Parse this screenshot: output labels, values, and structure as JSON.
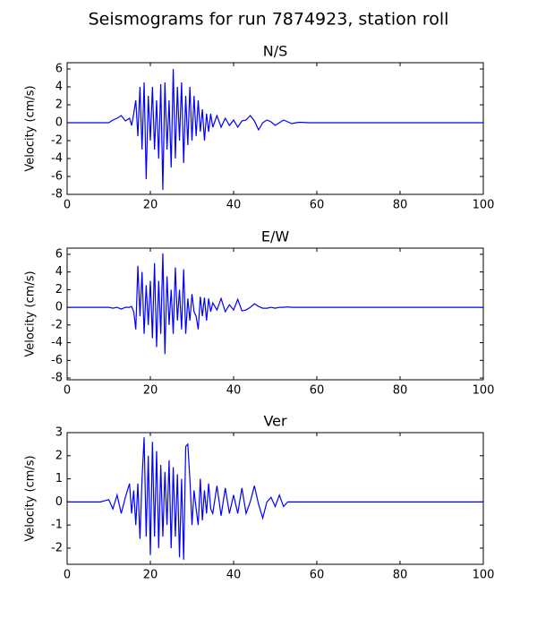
{
  "title": "Seismograms for run 7874923, station roll",
  "chart_data": [
    {
      "type": "line",
      "title": "N/S",
      "y_label": "Velocity (cm/s)",
      "xlim": [
        0,
        100
      ],
      "xticks": [
        0,
        20,
        40,
        60,
        80,
        100
      ],
      "ylim": [
        -8,
        6.7
      ],
      "yticks": [
        -8,
        -6,
        -4,
        -2,
        0,
        2,
        4,
        6
      ],
      "grid": false,
      "x": [
        0,
        5,
        8,
        9,
        10,
        11,
        12,
        13,
        14,
        15,
        15.5,
        16,
        16.5,
        17,
        17.5,
        18,
        18.5,
        19,
        19.5,
        20,
        20.5,
        21,
        21.5,
        22,
        22.5,
        23,
        23.5,
        24,
        24.5,
        25,
        25.5,
        26,
        26.5,
        27,
        27.5,
        28,
        28.5,
        29,
        29.5,
        30,
        30.5,
        31,
        31.5,
        32,
        32.5,
        33,
        33.5,
        34,
        34.5,
        35,
        36,
        37,
        38,
        39,
        40,
        41,
        42,
        43,
        44,
        45,
        46,
        47,
        48,
        49,
        50,
        51,
        52,
        53,
        54,
        55,
        56,
        58,
        60,
        70,
        80,
        90,
        100
      ],
      "series": [
        {
          "name": "N/S",
          "color": "#0000ff",
          "values": [
            0,
            0,
            0,
            0,
            0,
            0.3,
            0.5,
            0.8,
            0.2,
            0.5,
            -0.3,
            1,
            2.5,
            -1.5,
            4,
            -3,
            4.5,
            -6.3,
            3,
            -2,
            4,
            -3,
            2.5,
            -4,
            4.3,
            -7.5,
            4.5,
            -3,
            2.5,
            -5,
            6,
            -4,
            4,
            -2,
            4.5,
            -4.5,
            3,
            -2.5,
            4,
            -2,
            3,
            -1.5,
            2.5,
            -1,
            1.5,
            -2,
            1,
            -1,
            1,
            -0.5,
            0.8,
            -0.5,
            0.5,
            -0.3,
            0.3,
            -0.5,
            0.2,
            0.3,
            0.8,
            0.2,
            -0.8,
            0,
            0.3,
            0.1,
            -0.3,
            0,
            0.3,
            0.1,
            -0.1,
            0,
            0.05,
            0,
            0,
            0,
            0,
            0,
            0
          ]
        }
      ]
    },
    {
      "type": "line",
      "title": "E/W",
      "y_label": "Velocity (cm/s)",
      "xlim": [
        0,
        100
      ],
      "xticks": [
        0,
        20,
        40,
        60,
        80,
        100
      ],
      "ylim": [
        -8.2,
        6.7
      ],
      "yticks": [
        -8,
        -6,
        -4,
        -2,
        0,
        2,
        4,
        6
      ],
      "grid": false,
      "x": [
        0,
        5,
        8,
        9,
        10,
        11,
        12,
        13,
        14,
        15,
        15.5,
        16,
        16.5,
        17,
        17.5,
        18,
        18.5,
        19,
        19.5,
        20,
        20.5,
        21,
        21.5,
        22,
        22.5,
        23,
        23.5,
        24,
        24.5,
        25,
        25.5,
        26,
        26.5,
        27,
        27.5,
        28,
        28.5,
        29,
        29.5,
        30,
        30.5,
        31,
        31.5,
        32,
        32.5,
        33,
        33.5,
        34,
        34.5,
        35,
        36,
        37,
        38,
        39,
        40,
        41,
        42,
        43,
        44,
        45,
        46,
        47,
        48,
        49,
        50,
        51,
        52,
        53,
        54,
        55,
        56,
        58,
        60,
        70,
        80,
        90,
        100
      ],
      "series": [
        {
          "name": "E/W",
          "color": "#0000ff",
          "values": [
            0,
            0,
            0,
            0,
            0,
            -0.1,
            0,
            -0.2,
            0,
            0,
            0.1,
            -0.5,
            -2.5,
            4.7,
            -1,
            4,
            -3,
            2.5,
            -2,
            3,
            -3.5,
            5,
            -4.5,
            3,
            -3,
            6.1,
            -5.3,
            3.5,
            -2,
            2,
            -3,
            4.5,
            -1.5,
            2,
            -2.5,
            4.3,
            -3,
            1,
            -1.5,
            1.5,
            -0.5,
            -1,
            -2.5,
            1.2,
            -1,
            1.1,
            -1.5,
            1,
            -0.5,
            0.5,
            -0.3,
            1,
            -0.5,
            0.3,
            -0.3,
            0.9,
            -0.4,
            -0.3,
            0,
            0.4,
            0.1,
            -0.1,
            -0.1,
            0,
            -0.1,
            0,
            0,
            0.05,
            0,
            0,
            0,
            0,
            0,
            0,
            0,
            0,
            0
          ]
        }
      ]
    },
    {
      "type": "line",
      "title": "Ver",
      "y_label": "Velocity (cm/s)",
      "xlim": [
        0,
        100
      ],
      "xticks": [
        0,
        20,
        40,
        60,
        80,
        100
      ],
      "ylim": [
        -2.7,
        3
      ],
      "yticks": [
        -2,
        -1,
        0,
        1,
        2,
        3
      ],
      "grid": false,
      "x": [
        0,
        5,
        8,
        9,
        10,
        11,
        12,
        13,
        14,
        15,
        15.5,
        16,
        16.5,
        17,
        17.5,
        18,
        18.5,
        19,
        19.5,
        20,
        20.5,
        21,
        21.5,
        22,
        22.5,
        23,
        23.5,
        24,
        24.5,
        25,
        25.5,
        26,
        26.5,
        27,
        27.5,
        28,
        28.5,
        29,
        29.5,
        30,
        30.5,
        31,
        31.5,
        32,
        32.5,
        33,
        33.5,
        34,
        34.5,
        35,
        36,
        37,
        38,
        39,
        40,
        41,
        42,
        43,
        44,
        45,
        46,
        47,
        48,
        49,
        50,
        51,
        52,
        53,
        54,
        55,
        56,
        58,
        60,
        70,
        80,
        90,
        100
      ],
      "series": [
        {
          "name": "Ver",
          "color": "#0000ff",
          "values": [
            0,
            0,
            0,
            0.05,
            0.1,
            -0.3,
            0.3,
            -0.5,
            0.2,
            0.8,
            -0.5,
            0.5,
            -1,
            0.8,
            -1.6,
            1,
            2.8,
            -1.5,
            2,
            -2.3,
            2.6,
            -1.5,
            2.2,
            -2,
            1.6,
            -1.5,
            1.3,
            -1,
            1.8,
            -2,
            1.5,
            -1.5,
            1.2,
            -2.4,
            1,
            -2.5,
            2.4,
            2.5,
            1,
            -1,
            0.5,
            -0.3,
            -1,
            1,
            -0.8,
            0.5,
            -0.5,
            0.8,
            -0.3,
            -0.5,
            0.7,
            -0.6,
            0.6,
            -0.5,
            0.3,
            -0.5,
            0.6,
            -0.5,
            0,
            0.7,
            -0.1,
            -0.7,
            0,
            0.2,
            -0.2,
            0.3,
            -0.2,
            0,
            0,
            0,
            0,
            0,
            0,
            0,
            0,
            0,
            0
          ]
        }
      ]
    }
  ]
}
